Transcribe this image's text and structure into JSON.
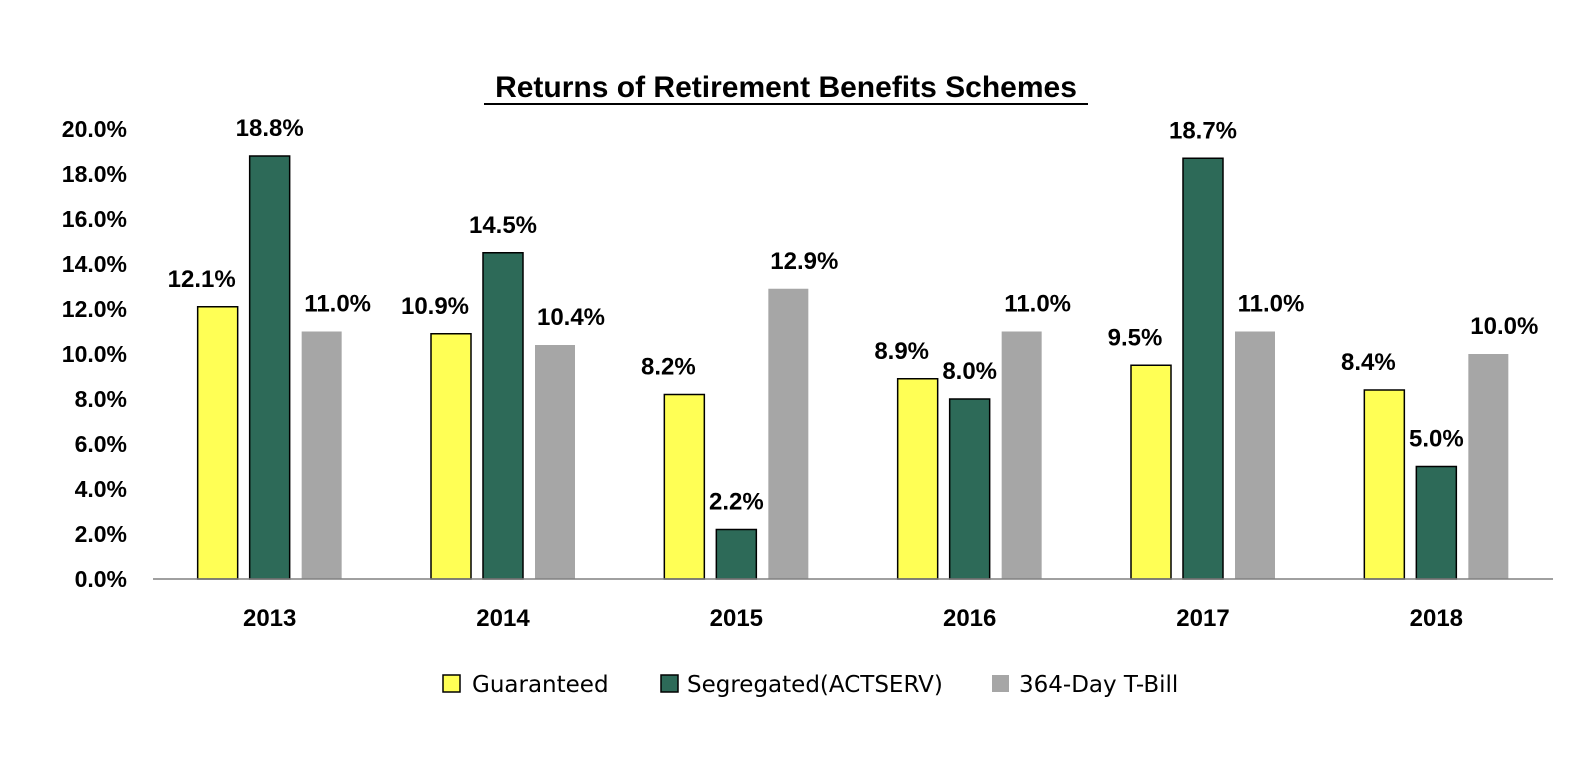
{
  "chart_data": {
    "type": "bar",
    "title": "Returns of Retirement Benefits Schemes",
    "categories": [
      "2013",
      "2014",
      "2015",
      "2016",
      "2017",
      "2018"
    ],
    "series": [
      {
        "name": "Guaranteed",
        "color": "#ffff55",
        "values": [
          12.1,
          10.9,
          8.2,
          8.9,
          9.5,
          8.4
        ],
        "labels": [
          "12.1%",
          "10.9%",
          "8.2%",
          "8.9%",
          "9.5%",
          "8.4%"
        ]
      },
      {
        "name": "Segregated(ACTSERV)",
        "color": "#2d6a58",
        "values": [
          18.8,
          14.5,
          2.2,
          8.0,
          18.7,
          5.0
        ],
        "labels": [
          "18.8%",
          "14.5%",
          "2.2%",
          "8.0%",
          "18.7%",
          "5.0%"
        ]
      },
      {
        "name": "364-Day T-Bill",
        "color": "#a6a6a6",
        "values": [
          11.0,
          10.4,
          12.9,
          11.0,
          11.0,
          10.0
        ],
        "labels": [
          "11.0%",
          "10.4%",
          "12.9%",
          "11.0%",
          "11.0%",
          "10.0%"
        ]
      }
    ],
    "ylim": [
      0,
      20
    ],
    "yticks": [
      0,
      2,
      4,
      6,
      8,
      10,
      12,
      14,
      16,
      18,
      20
    ],
    "ytick_labels": [
      "0.0%",
      "2.0%",
      "4.0%",
      "6.0%",
      "8.0%",
      "10.0%",
      "12.0%",
      "14.0%",
      "16.0%",
      "18.0%",
      "20.0%"
    ],
    "xlabel": "",
    "ylabel": "",
    "grid": false,
    "legend_position": "bottom"
  }
}
